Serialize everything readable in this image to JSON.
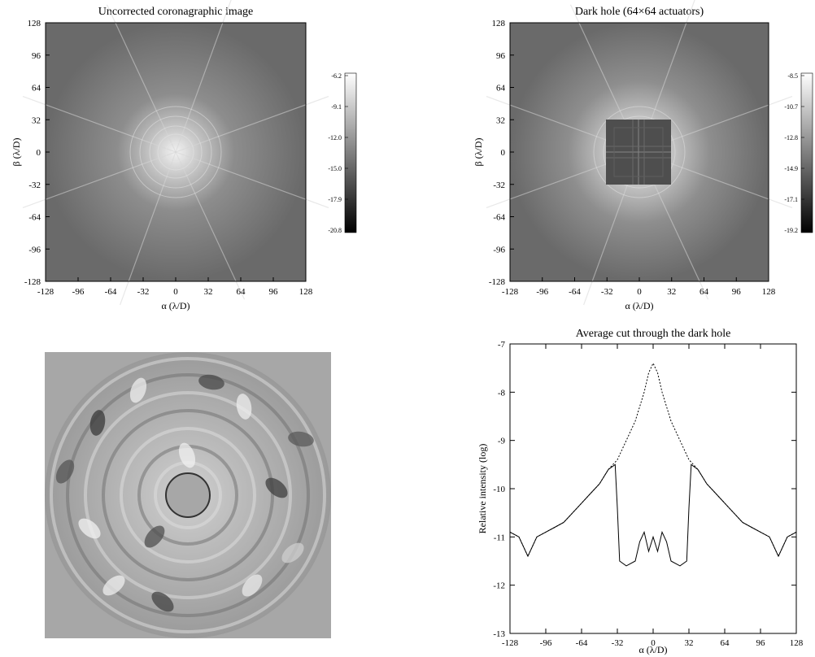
{
  "panels": {
    "top_left": {
      "title": "Uncorrected coronagraphic image",
      "xlabel": "α (λ/D)",
      "ylabel": "β (λ/D)",
      "x_ticks": [
        "-128",
        "-96",
        "-64",
        "-32",
        "0",
        "32",
        "64",
        "96",
        "128"
      ],
      "y_ticks": [
        "128",
        "96",
        "64",
        "32",
        "0",
        "-32",
        "-64",
        "-96",
        "-128"
      ],
      "colorbar_ticks": [
        "-6.2",
        "-9.1",
        "-12.0",
        "-15.0",
        "-17.9",
        "-20.8"
      ]
    },
    "top_right": {
      "title": "Dark hole (64×64 actuators)",
      "xlabel": "α (λ/D)",
      "ylabel": "β (λ/D)",
      "x_ticks": [
        "-128",
        "-96",
        "-64",
        "-32",
        "0",
        "32",
        "64",
        "96",
        "128"
      ],
      "y_ticks": [
        "128",
        "96",
        "64",
        "32",
        "0",
        "-32",
        "-64",
        "-96",
        "-128"
      ],
      "colorbar_ticks": [
        "-8.5",
        "-10.7",
        "-12.8",
        "-14.9",
        "-17.1",
        "-19.2"
      ]
    }
  },
  "chart_data": [
    {
      "type": "heatmap",
      "title": "Uncorrected coronagraphic image",
      "xlabel": "α (λ/D)",
      "ylabel": "β (λ/D)",
      "xlim": [
        -128,
        128
      ],
      "ylim": [
        -128,
        128
      ],
      "colorbar_range": [
        -20.8,
        -6.2
      ]
    },
    {
      "type": "heatmap",
      "title": "Dark hole (64×64 actuators)",
      "xlabel": "α (λ/D)",
      "ylabel": "β (λ/D)",
      "xlim": [
        -128,
        128
      ],
      "ylim": [
        -128,
        128
      ],
      "colorbar_range": [
        -19.2,
        -8.5
      ],
      "dark_hole_extent": [
        -32,
        32
      ]
    },
    {
      "type": "heatmap",
      "title": "",
      "xlabel": "",
      "ylabel": ""
    },
    {
      "type": "line",
      "title": "Average cut through the dark hole",
      "xlabel": "α (λ/D)",
      "ylabel": "Relative intensity (log)",
      "xlim": [
        -128,
        128
      ],
      "ylim": [
        -13,
        -7
      ],
      "x_ticks": [
        "-128",
        "-96",
        "-64",
        "-32",
        "0",
        "32",
        "64",
        "96",
        "128"
      ],
      "y_ticks": [
        "-7",
        "-8",
        "-9",
        "-10",
        "-11",
        "-12",
        "-13"
      ],
      "series": [
        {
          "style": "solid",
          "x": [
            -128,
            -120,
            -112,
            -104,
            -96,
            -88,
            -80,
            -72,
            -64,
            -56,
            -48,
            -40,
            -34,
            -32,
            -30,
            -24,
            -16,
            -12,
            -8,
            -4,
            0,
            4,
            8,
            12,
            16,
            24,
            30,
            32,
            34,
            40,
            48,
            56,
            64,
            72,
            80,
            88,
            96,
            104,
            112,
            120,
            128
          ],
          "y": [
            -10.9,
            -11.0,
            -11.4,
            -11.0,
            -10.9,
            -10.8,
            -10.7,
            -10.5,
            -10.3,
            -10.1,
            -9.9,
            -9.6,
            -9.5,
            -10.4,
            -11.5,
            -11.6,
            -11.5,
            -11.1,
            -10.9,
            -11.3,
            -11.0,
            -11.3,
            -10.9,
            -11.1,
            -11.5,
            -11.6,
            -11.5,
            -10.4,
            -9.5,
            -9.6,
            -9.9,
            -10.1,
            -10.3,
            -10.5,
            -10.7,
            -10.8,
            -10.9,
            -11.0,
            -11.4,
            -11.0,
            -10.9
          ]
        },
        {
          "style": "dotted",
          "x": [
            -128,
            -120,
            -112,
            -104,
            -96,
            -88,
            -80,
            -72,
            -64,
            -56,
            -48,
            -40,
            -32,
            -24,
            -16,
            -8,
            -4,
            0,
            4,
            8,
            16,
            24,
            32,
            40,
            48,
            56,
            64,
            72,
            80,
            88,
            96,
            104,
            112,
            120,
            128
          ],
          "y": [
            -10.9,
            -11.0,
            -11.4,
            -11.0,
            -10.9,
            -10.8,
            -10.7,
            -10.5,
            -10.3,
            -10.1,
            -9.9,
            -9.6,
            -9.4,
            -9.0,
            -8.6,
            -8.0,
            -7.6,
            -7.4,
            -7.6,
            -8.0,
            -8.6,
            -9.0,
            -9.4,
            -9.6,
            -9.9,
            -10.1,
            -10.3,
            -10.5,
            -10.7,
            -10.8,
            -10.9,
            -11.0,
            -11.4,
            -11.0,
            -10.9
          ]
        }
      ]
    }
  ]
}
